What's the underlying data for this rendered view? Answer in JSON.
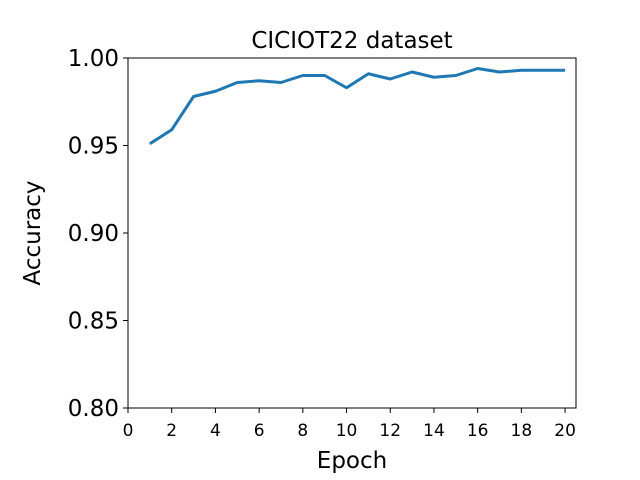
{
  "chart_data": {
    "type": "line",
    "title": "CICIOT22 dataset",
    "xlabel": "Epoch",
    "ylabel": "Accuracy",
    "xlim": [
      0,
      20.5
    ],
    "ylim": [
      0.8,
      1.0
    ],
    "xticks": [
      "0",
      "2",
      "4",
      "6",
      "8",
      "10",
      "12",
      "14",
      "16",
      "18",
      "20"
    ],
    "yticks": [
      "0.80",
      "0.85",
      "0.90",
      "0.95",
      "1.00"
    ],
    "grid": false,
    "series": [
      {
        "color": "#1f77b4",
        "x": [
          1,
          2,
          3,
          4,
          5,
          6,
          7,
          8,
          9,
          10,
          11,
          12,
          13,
          14,
          15,
          16,
          17,
          18,
          19,
          20
        ],
        "y": [
          0.951,
          0.959,
          0.978,
          0.981,
          0.986,
          0.987,
          0.986,
          0.99,
          0.99,
          0.983,
          0.991,
          0.988,
          0.992,
          0.989,
          0.99,
          0.994,
          0.992,
          0.993,
          0.993,
          0.993
        ]
      }
    ]
  }
}
